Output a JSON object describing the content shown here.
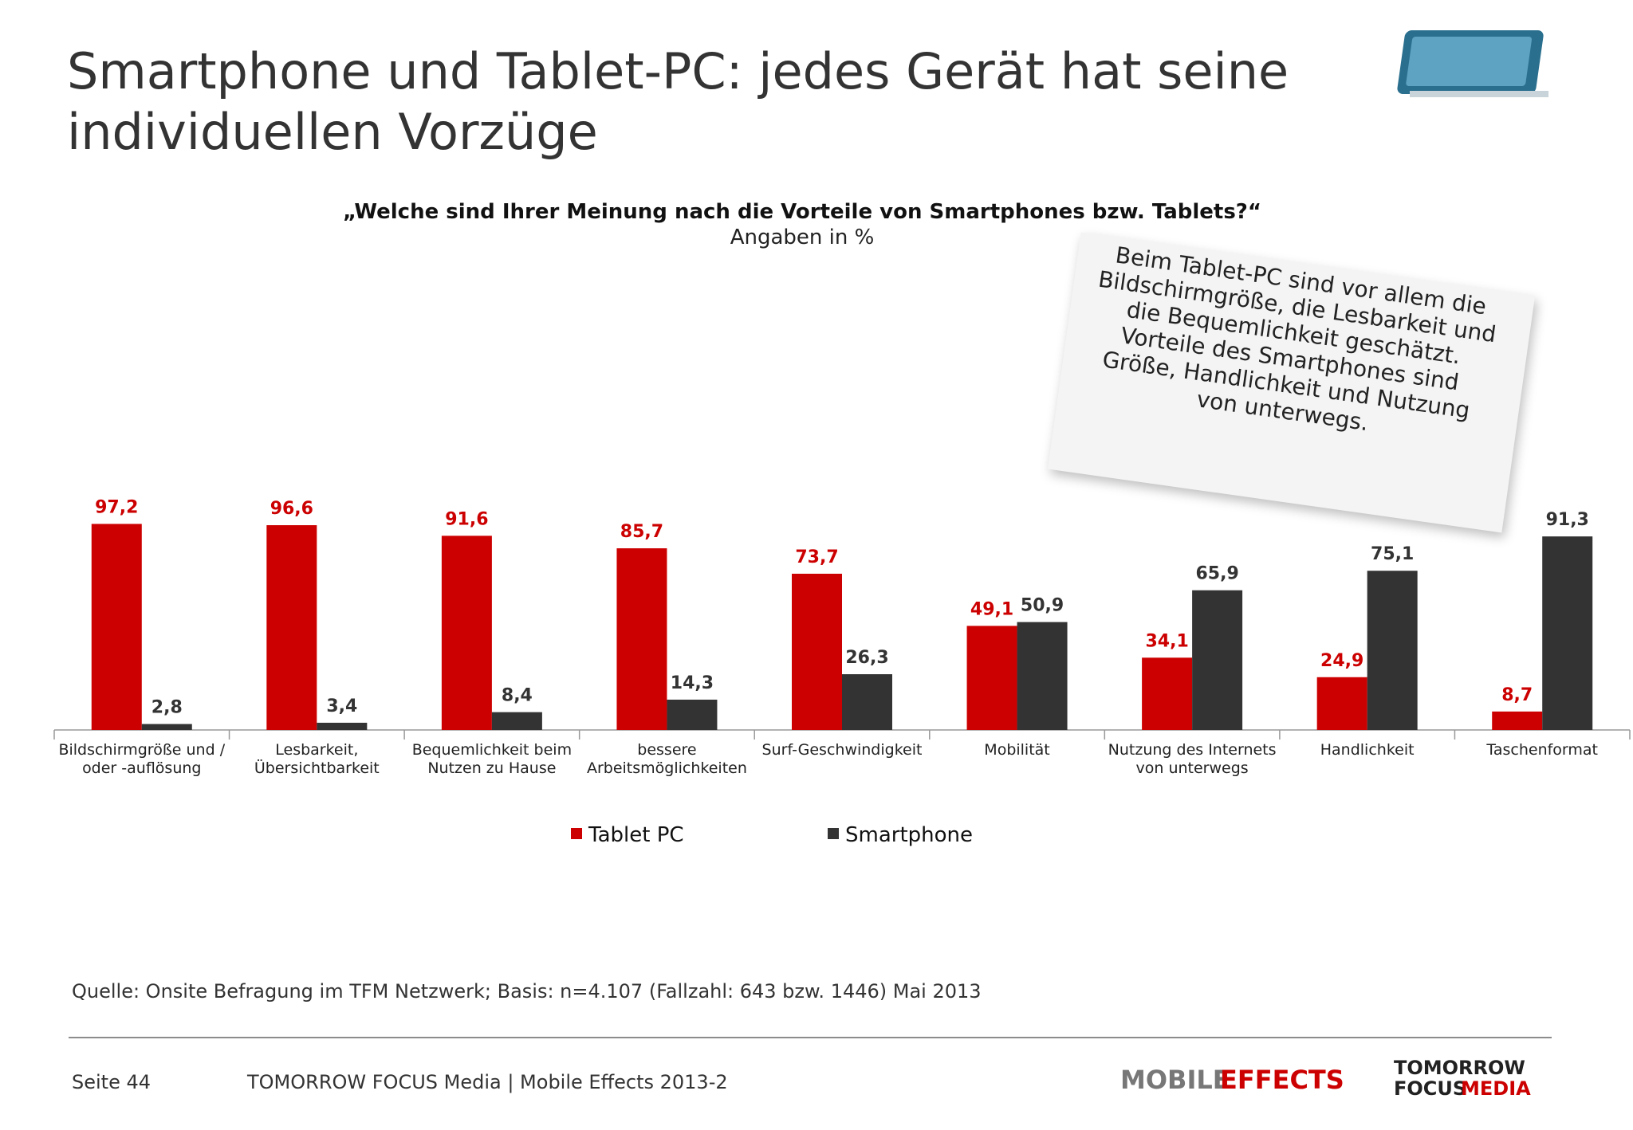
{
  "page": {
    "title": "Smartphone und Tablet-PC: jedes Gerät hat seine individuellen Vorzüge",
    "source": "Quelle: Onsite Befragung im TFM Netzwerk; Basis: n=4.107 (Fallzahl: 643 bzw. 1446) Mai 2013",
    "page_number": "Seite 44",
    "footer": "TOMORROW FOCUS Media | Mobile Effects 2013-2",
    "logo_left": {
      "part1": "MOBILE",
      "part2": "EFFECTS"
    },
    "logo_right": {
      "line1": "TOMORROW",
      "line2a": "FOCUS",
      "line2b": "MEDIA"
    }
  },
  "chart_data": {
    "type": "bar",
    "title": "„Welche sind Ihrer Meinung nach die Vorteile von Smartphones bzw. Tablets?“",
    "subtitle": "Angaben in %",
    "annotation": "Beim Tablet-PC sind vor allem die Bildschirmgröße, die Lesbarkeit und die Bequemlichkeit geschätzt. Vorteile des Smartphones sind Größe, Handlichkeit und Nutzung von unterwegs.",
    "categories": [
      "Bildschirmgröße und / oder -auflösung",
      "Lesbarkeit, Übersichtbarkeit",
      "Bequemlichkeit beim Nutzen zu Hause",
      "bessere Arbeitsmöglichkeiten",
      "Surf-Geschwindigkeit",
      "Mobilität",
      "Nutzung des Internets von unterwegs",
      "Handlichkeit",
      "Taschenformat"
    ],
    "series": [
      {
        "name": "Tablet PC",
        "color": "#cc0000",
        "label_color": "#cc0000",
        "values": [
          97.2,
          96.6,
          91.6,
          85.7,
          73.7,
          49.1,
          34.1,
          24.9,
          8.7
        ],
        "value_labels": [
          "97,2",
          "96,6",
          "91,6",
          "85,7",
          "73,7",
          "49,1",
          "34,1",
          "24,9",
          "8,7"
        ]
      },
      {
        "name": "Smartphone",
        "color": "#333333",
        "label_color": "#333333",
        "values": [
          2.8,
          3.4,
          8.4,
          14.3,
          26.3,
          50.9,
          65.9,
          75.1,
          91.3
        ],
        "value_labels": [
          "2,8",
          "3,4",
          "8,4",
          "14,3",
          "26,3",
          "50,9",
          "65,9",
          "75,1",
          "91,3"
        ]
      }
    ],
    "ylim": [
      0,
      100
    ],
    "legend": "bottom"
  }
}
